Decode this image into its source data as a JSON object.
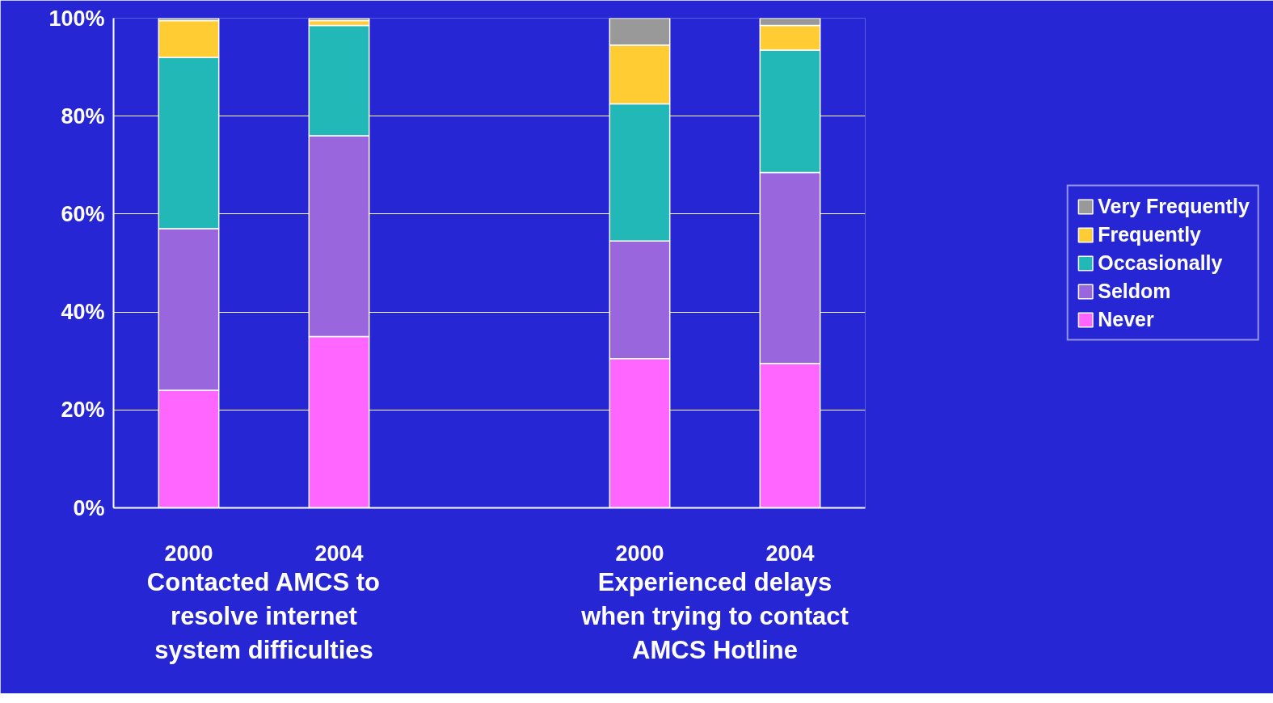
{
  "chart_data": {
    "type": "bar",
    "stacked": true,
    "categories": [
      "2000",
      "2004",
      null,
      "2000",
      "2004"
    ],
    "series": [
      {
        "name": "Never",
        "color": "#ff66ff",
        "values": [
          24,
          35,
          null,
          30.5,
          29.5
        ]
      },
      {
        "name": "Seldom",
        "color": "#9966dd",
        "values": [
          33,
          41,
          null,
          24,
          39
        ]
      },
      {
        "name": "Occasionally",
        "color": "#22b8b8",
        "values": [
          35,
          22.5,
          null,
          28,
          25
        ]
      },
      {
        "name": "Frequently",
        "color": "#ffcc33",
        "values": [
          7.5,
          1,
          null,
          12,
          5
        ]
      },
      {
        "name": "Very Frequently",
        "color": "#999999",
        "values": [
          0.5,
          0.5,
          null,
          5.5,
          1.5
        ]
      }
    ],
    "ylim": [
      0,
      100
    ],
    "yticks": [
      {
        "value": 0,
        "label": "0%"
      },
      {
        "value": 20,
        "label": "20%"
      },
      {
        "value": 40,
        "label": "40%"
      },
      {
        "value": 60,
        "label": "60%"
      },
      {
        "value": 80,
        "label": "80%"
      },
      {
        "value": 100,
        "label": "100%"
      }
    ],
    "annotations": [
      "Contacted AMCS to\nresolve internet\nsystem difficulties",
      "Experienced delays\nwhen trying to contact\nAMCS Hotline"
    ],
    "grid": "y",
    "legend": "right"
  }
}
